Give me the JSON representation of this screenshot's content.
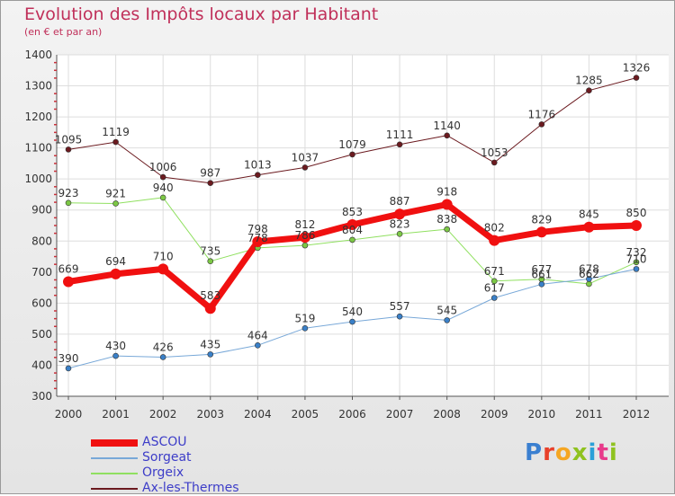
{
  "title": "Evolution des Impôts locaux par Habitant",
  "subtitle": "(en € et par an)",
  "logo": {
    "text": "Proxiti",
    "colors": [
      "#3a7fd0",
      "#e8402a",
      "#f5a623",
      "#8fc21f",
      "#2aa0d8",
      "#e83a8a",
      "#8fc21f"
    ]
  },
  "chart_data": {
    "type": "line",
    "x": [
      "2000",
      "2001",
      "2002",
      "2003",
      "2004",
      "2005",
      "2006",
      "2007",
      "2008",
      "2009",
      "2010",
      "2011",
      "2012"
    ],
    "ylim": [
      300,
      1400
    ],
    "yticks": [
      300,
      400,
      500,
      600,
      700,
      800,
      900,
      1000,
      1100,
      1200,
      1300,
      1400
    ],
    "grid": true,
    "legend": "bottom-left",
    "series": [
      {
        "name": "Ax-les-Thermes",
        "color": "#6b1a1f",
        "marker": "#6b1a1f",
        "width": 1,
        "values": [
          1095,
          1119,
          1006,
          987,
          1013,
          1037,
          1079,
          1111,
          1140,
          1053,
          1176,
          1285,
          1326
        ]
      },
      {
        "name": "Orgeix",
        "color": "#90e060",
        "marker": "#7cc845",
        "width": 1,
        "values": [
          923,
          921,
          940,
          735,
          778,
          786,
          804,
          823,
          838,
          671,
          677,
          662,
          732
        ]
      },
      {
        "name": "Sorgeat",
        "color": "#78a8d8",
        "marker": "#3a80c8",
        "width": 1,
        "values": [
          390,
          430,
          426,
          435,
          464,
          519,
          540,
          557,
          545,
          617,
          661,
          678,
          710
        ]
      },
      {
        "name": "ASCOU",
        "color": "#f01010",
        "marker": "#f01010",
        "width": 7,
        "values": [
          669,
          694,
          710,
          583,
          798,
          812,
          853,
          887,
          918,
          802,
          829,
          845,
          850
        ]
      }
    ],
    "legend_order": [
      "ASCOU",
      "Sorgeat",
      "Orgeix",
      "Ax-les-Thermes"
    ]
  }
}
